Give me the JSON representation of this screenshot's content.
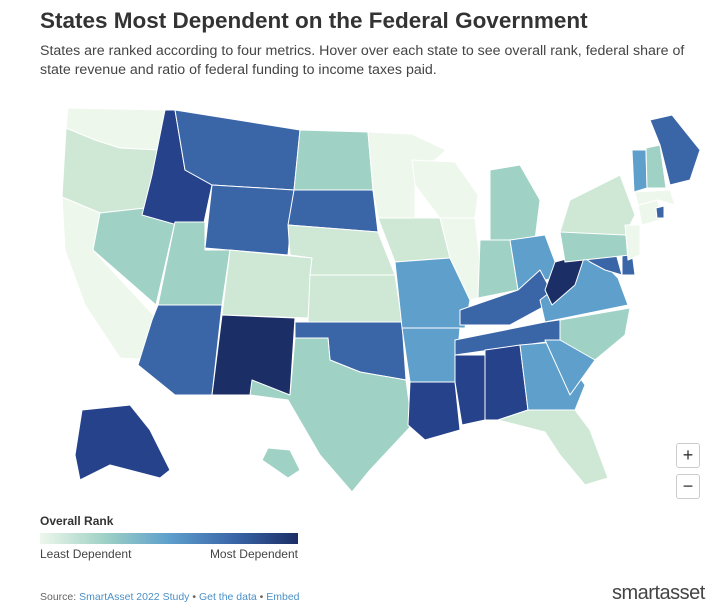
{
  "header": {
    "title": "States Most Dependent on the Federal Government",
    "subtitle": "States are ranked according to four metrics. Hover over each state to see overall rank, federal share of state revenue and ratio of federal funding to income taxes paid."
  },
  "zoom": {
    "in_label": "+",
    "out_label": "−"
  },
  "legend": {
    "title": "Overall Rank",
    "low_label": "Least Dependent",
    "high_label": "Most Dependent",
    "colors": [
      "#eef7ec",
      "#9fd1c5",
      "#5e9fcc",
      "#3a66a8",
      "#1c2e66"
    ]
  },
  "footer": {
    "source_prefix": "Source: ",
    "source_link": "SmartAsset 2022 Study",
    "separator": " • ",
    "data_link": "Get the data",
    "embed_link": "Embed"
  },
  "brand": {
    "part1": "smart",
    "part2": "asset"
  },
  "map_data": {
    "type": "choropleth",
    "color_scale": {
      "1": "#eef7ec",
      "2": "#cfe8d6",
      "3": "#9fd1c5",
      "4": "#5e9fcc",
      "5": "#3a66a8",
      "6": "#26428a",
      "7": "#1c2e66"
    },
    "states": {
      "WA": 1,
      "OR": 2,
      "CA": 1,
      "NV": 3,
      "ID": 6,
      "MT": 5,
      "WY": 5,
      "UT": 3,
      "AZ": 5,
      "CO": 2,
      "NM": 7,
      "ND": 3,
      "SD": 5,
      "NE": 2,
      "KS": 2,
      "OK": 5,
      "TX": 3,
      "MN": 1,
      "IA": 2,
      "MO": 4,
      "AR": 4,
      "LA": 6,
      "WI": 1,
      "IL": 1,
      "MI": 3,
      "IN": 3,
      "OH": 4,
      "KY": 5,
      "TN": 5,
      "MS": 6,
      "AL": 6,
      "GA": 4,
      "FL": 2,
      "SC": 4,
      "NC": 3,
      "VA": 4,
      "WV": 7,
      "MD": 5,
      "DE": 5,
      "PA": 3,
      "NY": 2,
      "NJ": 1,
      "CT": 1,
      "RI": 5,
      "MA": 1,
      "VT": 4,
      "NH": 3,
      "ME": 5,
      "AK": 6,
      "HI": 3
    }
  }
}
